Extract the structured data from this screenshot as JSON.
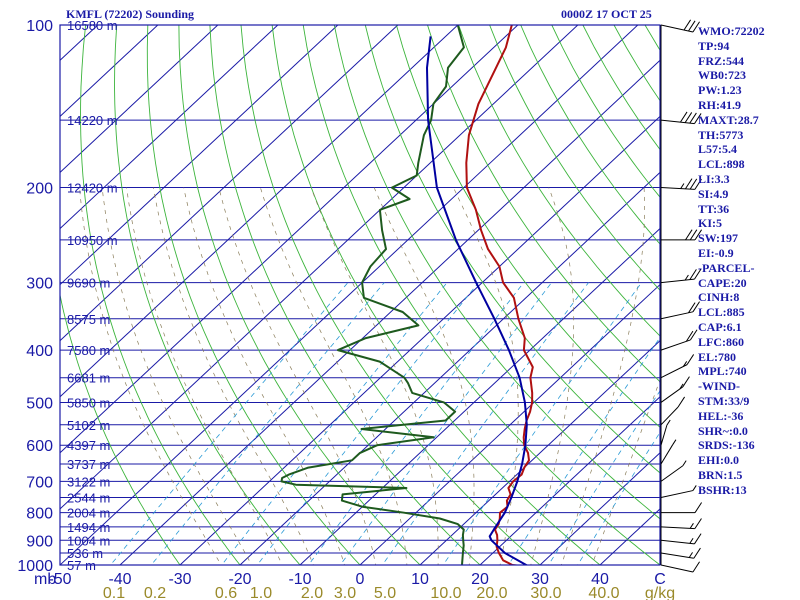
{
  "header": {
    "station": "KMFL (72202) Sounding",
    "time": "0000Z 17 OCT 25"
  },
  "indices": [
    "WMO:72202",
    "TP:94",
    "FRZ:544",
    "WB0:723",
    "PW:1.23",
    "RH:41.9",
    "MAXT:28.7",
    "TH:5773",
    "L57:5.4",
    "LCL:898",
    "LI:3.3",
    "SI:4.9",
    "TT:36",
    "KI:5",
    "SW:197",
    "EI:-0.9",
    "-PARCEL-",
    "CAPE:20",
    "CINH:8",
    "LCL:885",
    "CAP:6.1",
    "LFC:860",
    "EL:780",
    "MPL:740",
    "-WIND-",
    "STM:33/9",
    "HEL:-36",
    "SHR~:0.0",
    "SRDS:-136",
    "EHI:0.0",
    "BRN:1.5",
    "BSHR:13"
  ],
  "chart_data": {
    "type": "line",
    "chart_kind": "Skew-T log-P sounding",
    "y_scale": "log",
    "ylim": [
      1000,
      100
    ],
    "xlim": [
      -50,
      50
    ],
    "x_axis_units": "C",
    "y_axis_units": "mb",
    "pressure_ticks": [
      "100",
      "200",
      "300",
      "400",
      "500",
      "600",
      "700",
      "800",
      "900",
      "1000"
    ],
    "temperature_ticks": [
      "-50",
      "-40",
      "-30",
      "-20",
      "-10",
      "0",
      "10",
      "20",
      "30",
      "40",
      "C"
    ],
    "mixing_ratio_ticks": [
      "0.1",
      "0.2",
      "0.6",
      "1.0",
      "2.0",
      "3.0",
      "5.0",
      "10.0",
      "20.0",
      "30.0",
      "40.0",
      "g/kg"
    ],
    "height_labels": [
      {
        "p": 100,
        "label": "16580 m"
      },
      {
        "p": 150,
        "label": "14220 m"
      },
      {
        "p": 200,
        "label": "12420 m"
      },
      {
        "p": 250,
        "label": "10950 m"
      },
      {
        "p": 300,
        "label": "9690 m"
      },
      {
        "p": 350,
        "label": "8575 m"
      },
      {
        "p": 400,
        "label": "7580 m"
      },
      {
        "p": 450,
        "label": "6681 m"
      },
      {
        "p": 500,
        "label": "5850 m"
      },
      {
        "p": 550,
        "label": "5102 m"
      },
      {
        "p": 600,
        "label": "4397 m"
      },
      {
        "p": 650,
        "label": "3737 m"
      },
      {
        "p": 700,
        "label": "3122 m"
      },
      {
        "p": 750,
        "label": "2544 m"
      },
      {
        "p": 800,
        "label": "2004 m"
      },
      {
        "p": 850,
        "label": "1494 m"
      },
      {
        "p": 900,
        "label": "1004 m"
      },
      {
        "p": 950,
        "label": "536 m"
      },
      {
        "p": 1000,
        "label": "57 m"
      }
    ],
    "series": [
      {
        "role": "temperature",
        "color": "#b01010",
        "points": [
          [
            1008,
            28.6
          ],
          [
            1000,
            25.4
          ],
          [
            980,
            23.0
          ],
          [
            950,
            21.0
          ],
          [
            925,
            19.5
          ],
          [
            900,
            18.5
          ],
          [
            880,
            17.5
          ],
          [
            860,
            16.2
          ],
          [
            840,
            15.8
          ],
          [
            820,
            15.0
          ],
          [
            800,
            14.0
          ],
          [
            780,
            14.2
          ],
          [
            760,
            13.0
          ],
          [
            740,
            12.5
          ],
          [
            720,
            11.0
          ],
          [
            700,
            10.6
          ],
          [
            680,
            10.8
          ],
          [
            660,
            10.0
          ],
          [
            640,
            9.5
          ],
          [
            620,
            8.0
          ],
          [
            600,
            6.0
          ],
          [
            580,
            4.5
          ],
          [
            560,
            3.2
          ],
          [
            540,
            2.0
          ],
          [
            520,
            1.0
          ],
          [
            500,
            -0.3
          ],
          [
            480,
            -2.0
          ],
          [
            450,
            -5.0
          ],
          [
            430,
            -6.5
          ],
          [
            400,
            -11.0
          ],
          [
            380,
            -13.0
          ],
          [
            350,
            -17.5
          ],
          [
            320,
            -22.0
          ],
          [
            300,
            -26.5
          ],
          [
            280,
            -30.0
          ],
          [
            260,
            -35.0
          ],
          [
            240,
            -39.5
          ],
          [
            220,
            -44.0
          ],
          [
            200,
            -49.5
          ],
          [
            180,
            -54.0
          ],
          [
            160,
            -58.5
          ],
          [
            140,
            -62.5
          ],
          [
            120,
            -66.0
          ],
          [
            110,
            -68.0
          ],
          [
            100,
            -71.0
          ]
        ]
      },
      {
        "role": "dewpoint",
        "color": "#1e5a1e",
        "points": [
          [
            1008,
            18.0
          ],
          [
            1000,
            17.0
          ],
          [
            950,
            15.0
          ],
          [
            920,
            13.8
          ],
          [
            900,
            12.8
          ],
          [
            880,
            11.8
          ],
          [
            860,
            11.0
          ],
          [
            840,
            9.0
          ],
          [
            820,
            5.0
          ],
          [
            800,
            -2.0
          ],
          [
            780,
            -10.0
          ],
          [
            760,
            -14.5
          ],
          [
            740,
            -15.5
          ],
          [
            720,
            -6.0
          ],
          [
            710,
            -25.0
          ],
          [
            700,
            -28.0
          ],
          [
            690,
            -28.5
          ],
          [
            680,
            -28.0
          ],
          [
            660,
            -26.0
          ],
          [
            640,
            -20.0
          ],
          [
            620,
            -20.0
          ],
          [
            600,
            -18.5
          ],
          [
            580,
            -10.5
          ],
          [
            560,
            -24.0
          ],
          [
            540,
            -11.5
          ],
          [
            520,
            -11.5
          ],
          [
            500,
            -15.0
          ],
          [
            480,
            -22.0
          ],
          [
            460,
            -24.5
          ],
          [
            450,
            -26.0
          ],
          [
            420,
            -33.0
          ],
          [
            400,
            -42.0
          ],
          [
            380,
            -39.5
          ],
          [
            360,
            -33.0
          ],
          [
            340,
            -38.0
          ],
          [
            320,
            -47.0
          ],
          [
            300,
            -50.0
          ],
          [
            280,
            -51.5
          ],
          [
            260,
            -52.0
          ],
          [
            240,
            -56.0
          ],
          [
            220,
            -60.0
          ],
          [
            210,
            -57.0
          ],
          [
            200,
            -62.0
          ],
          [
            190,
            -60.0
          ],
          [
            180,
            -62.0
          ],
          [
            160,
            -66.0
          ],
          [
            150,
            -67.5
          ],
          [
            140,
            -70.0
          ],
          [
            130,
            -71.0
          ],
          [
            120,
            -74.0
          ],
          [
            110,
            -75.0
          ],
          [
            100,
            -80.0
          ]
        ]
      },
      {
        "role": "parcel",
        "color": "#0000a0",
        "points": [
          [
            1008,
            28.6
          ],
          [
            950,
            22.0
          ],
          [
            900,
            17.5
          ],
          [
            885,
            16.5
          ],
          [
            860,
            16.0
          ],
          [
            800,
            14.8
          ],
          [
            750,
            13.2
          ],
          [
            700,
            11.3
          ],
          [
            650,
            9.0
          ],
          [
            600,
            6.2
          ],
          [
            550,
            2.8
          ],
          [
            500,
            -1.5
          ],
          [
            450,
            -6.8
          ],
          [
            400,
            -13.5
          ],
          [
            350,
            -21.5
          ],
          [
            300,
            -31.0
          ],
          [
            250,
            -42.0
          ],
          [
            200,
            -54.5
          ],
          [
            150,
            -68.0
          ],
          [
            120,
            -77.5
          ],
          [
            105,
            -82.5
          ]
        ]
      }
    ],
    "wind_barbs": [
      {
        "p": 1000,
        "dir": 250,
        "kt": 10
      },
      {
        "p": 950,
        "dir": 255,
        "kt": 15
      },
      {
        "p": 900,
        "dir": 260,
        "kt": 15
      },
      {
        "p": 850,
        "dir": 265,
        "kt": 15
      },
      {
        "p": 800,
        "dir": 270,
        "kt": 10
      },
      {
        "p": 750,
        "dir": 290,
        "kt": 5
      },
      {
        "p": 700,
        "dir": 320,
        "kt": 5
      },
      {
        "p": 650,
        "dir": 340,
        "kt": 5
      },
      {
        "p": 600,
        "dir": 350,
        "kt": 5
      },
      {
        "p": 550,
        "dir": 330,
        "kt": 10
      },
      {
        "p": 500,
        "dir": 320,
        "kt": 15
      },
      {
        "p": 450,
        "dir": 310,
        "kt": 15
      },
      {
        "p": 400,
        "dir": 300,
        "kt": 20
      },
      {
        "p": 350,
        "dir": 290,
        "kt": 20
      },
      {
        "p": 300,
        "dir": 280,
        "kt": 25
      },
      {
        "p": 250,
        "dir": 270,
        "kt": 30
      },
      {
        "p": 200,
        "dir": 265,
        "kt": 35
      },
      {
        "p": 150,
        "dir": 260,
        "kt": 40
      },
      {
        "p": 100,
        "dir": 250,
        "kt": 30
      }
    ]
  }
}
